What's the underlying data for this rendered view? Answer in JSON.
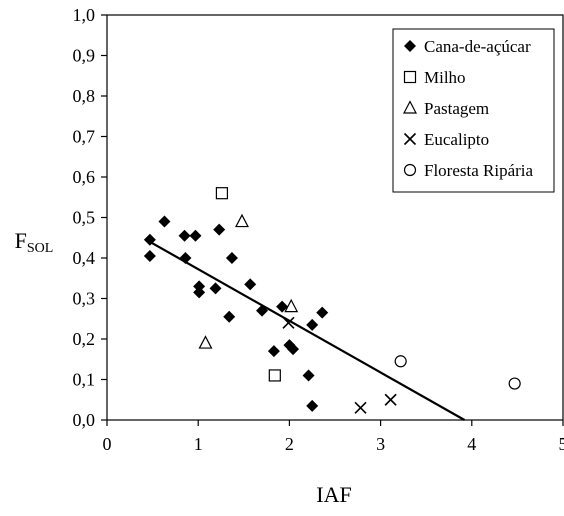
{
  "chart_data": {
    "type": "scatter",
    "title": "",
    "xlabel": "IAF",
    "ylabel": "F",
    "ylabel_sub": "SOL",
    "xlim": [
      0,
      5
    ],
    "ylim": [
      0,
      1.0
    ],
    "xticks": [
      "0",
      "1",
      "2",
      "3",
      "4",
      "5"
    ],
    "yticks": [
      "0,0",
      "0,1",
      "0,2",
      "0,3",
      "0,4",
      "0,5",
      "0,6",
      "0,7",
      "0,8",
      "0,9",
      "1,0"
    ],
    "grid": false,
    "legend_position": "top-right",
    "series": [
      {
        "name": "Cana-de-açúcar",
        "marker": "filled-diamond",
        "points": [
          [
            0.47,
            0.445
          ],
          [
            0.47,
            0.405
          ],
          [
            0.63,
            0.49
          ],
          [
            0.85,
            0.455
          ],
          [
            0.97,
            0.455
          ],
          [
            0.86,
            0.4
          ],
          [
            1.01,
            0.33
          ],
          [
            1.01,
            0.315
          ],
          [
            1.19,
            0.325
          ],
          [
            1.23,
            0.47
          ],
          [
            1.37,
            0.4
          ],
          [
            1.34,
            0.255
          ],
          [
            1.57,
            0.335
          ],
          [
            1.7,
            0.27
          ],
          [
            1.83,
            0.17
          ],
          [
            1.92,
            0.28
          ],
          [
            2.0,
            0.185
          ],
          [
            2.04,
            0.175
          ],
          [
            2.21,
            0.11
          ],
          [
            2.25,
            0.235
          ],
          [
            2.25,
            0.035
          ],
          [
            2.36,
            0.265
          ]
        ]
      },
      {
        "name": "Milho",
        "marker": "open-square",
        "points": [
          [
            1.26,
            0.56
          ],
          [
            1.84,
            0.11
          ]
        ]
      },
      {
        "name": "Pastagem",
        "marker": "open-triangle",
        "points": [
          [
            1.08,
            0.19
          ],
          [
            1.48,
            0.49
          ],
          [
            2.02,
            0.28
          ]
        ]
      },
      {
        "name": "Eucalipto",
        "marker": "x",
        "points": [
          [
            1.99,
            0.24
          ],
          [
            2.78,
            0.03
          ],
          [
            3.11,
            0.05
          ]
        ]
      },
      {
        "name": "Floresta Ripária",
        "marker": "open-circle",
        "points": [
          [
            3.22,
            0.145
          ],
          [
            4.47,
            0.09
          ]
        ]
      }
    ],
    "trendline": {
      "x": [
        0.47,
        3.92
      ],
      "y": [
        0.44,
        0.0
      ]
    }
  }
}
